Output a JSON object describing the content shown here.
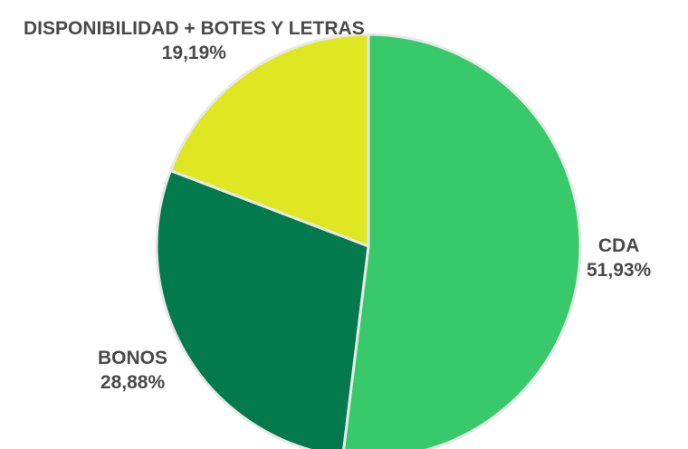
{
  "chart_data": {
    "type": "pie",
    "title": "",
    "slices": [
      {
        "name": "CDA",
        "value": 51.93,
        "value_label": "51,93%",
        "color": "#37c96a"
      },
      {
        "name": "BONOS",
        "value": 28.88,
        "value_label": "28,88%",
        "color": "#027a4e"
      },
      {
        "name": "DISPONIBILIDAD + BOTES Y LETRAS",
        "value": 19.19,
        "value_label": "19,19%",
        "color": "#dfe622"
      }
    ],
    "start": "12 o'clock",
    "direction": "clockwise",
    "border_color": "#e8e8e8"
  }
}
